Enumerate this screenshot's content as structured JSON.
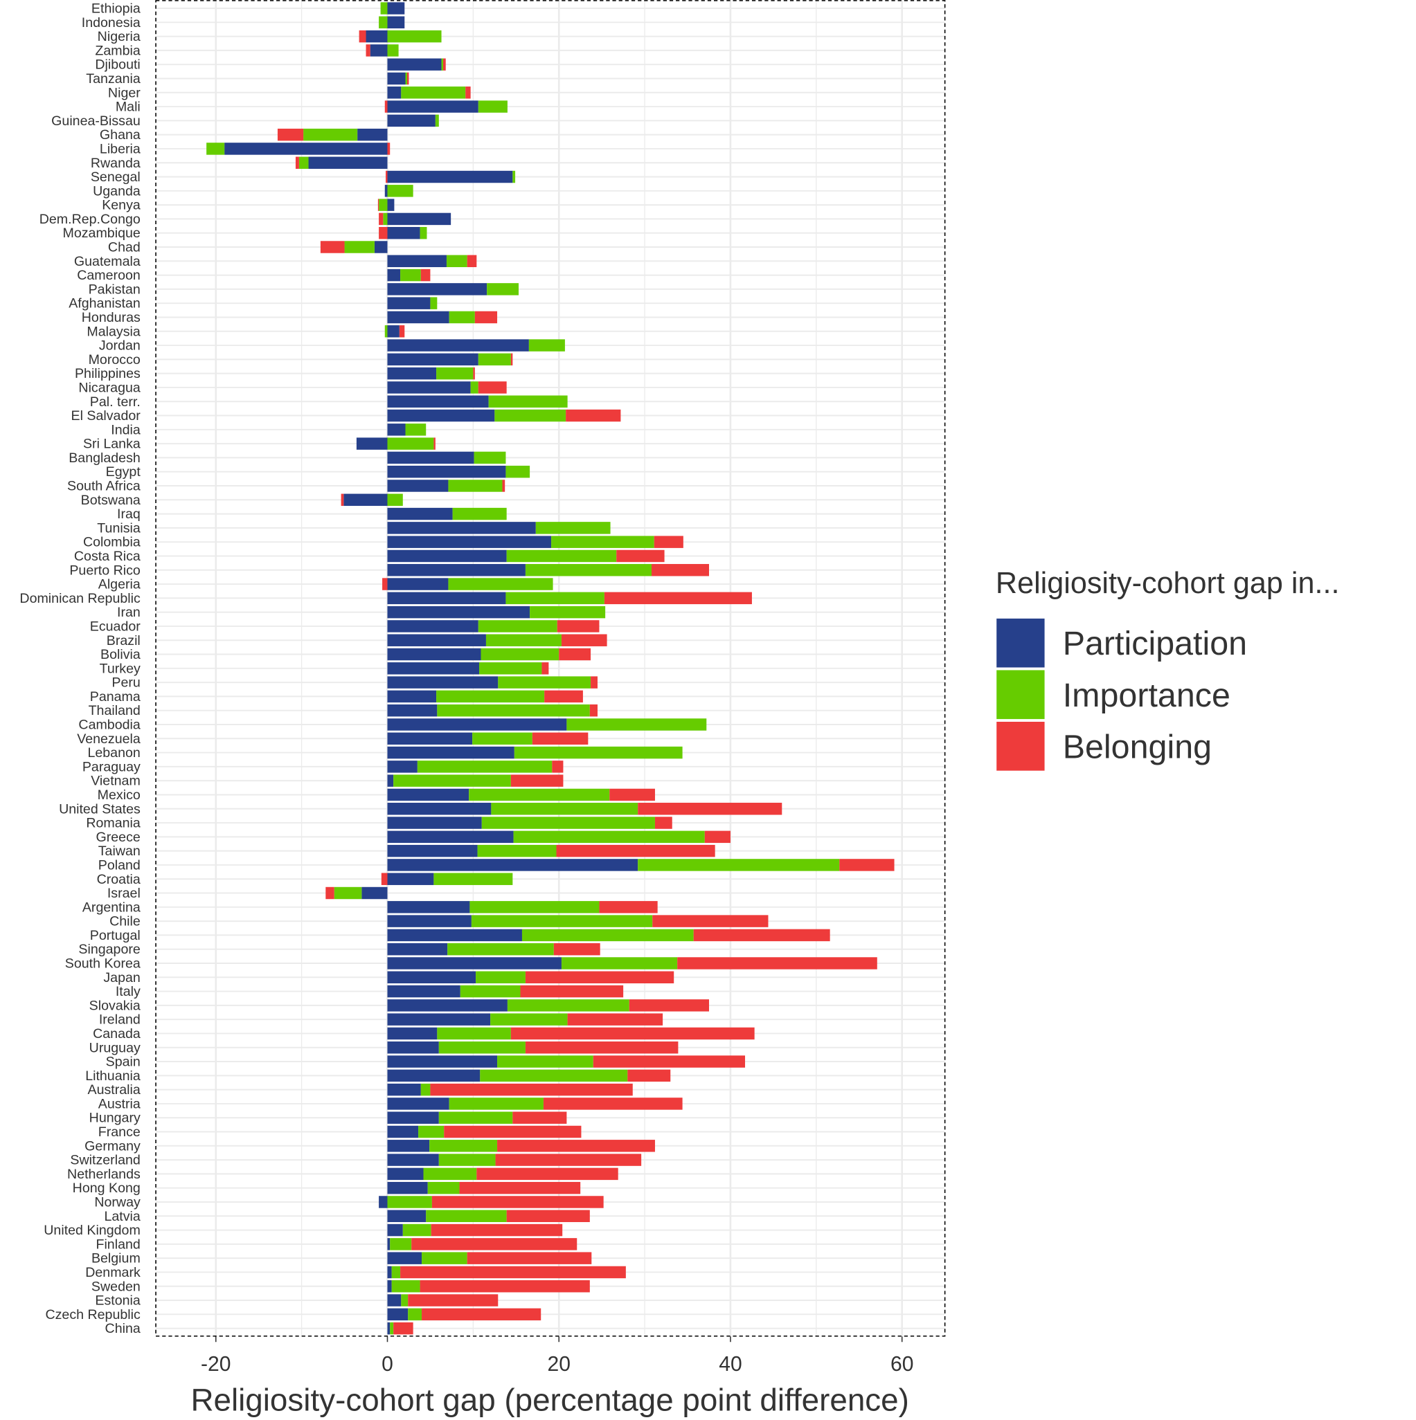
{
  "chart_data": {
    "type": "bar",
    "orientation": "horizontal",
    "stacked": true,
    "xlabel": "Religiosity-cohort gap (percentage point difference)",
    "ylabel": "",
    "xlim": [
      -27,
      65
    ],
    "xticks": [
      -20,
      0,
      20,
      40,
      60
    ],
    "grid": true,
    "legend": {
      "title": "Religiosity-cohort gap in...",
      "placement": "right",
      "entries": [
        "Participation",
        "Importance",
        "Belonging"
      ]
    },
    "colors": {
      "Participation": "#26408B",
      "Importance": "#66CC00",
      "Belonging": "#EE3B3B"
    },
    "categories": [
      "Ethiopia",
      "Indonesia",
      "Nigeria",
      "Zambia",
      "Djibouti",
      "Tanzania",
      "Niger",
      "Mali",
      "Guinea-Bissau",
      "Ghana",
      "Liberia",
      "Rwanda",
      "Senegal",
      "Uganda",
      "Kenya",
      "Dem.Rep.Congo",
      "Mozambique",
      "Chad",
      "Guatemala",
      "Cameroon",
      "Pakistan",
      "Afghanistan",
      "Honduras",
      "Malaysia",
      "Jordan",
      "Morocco",
      "Philippines",
      "Nicaragua",
      "Pal. terr.",
      "El Salvador",
      "India",
      "Sri Lanka",
      "Bangladesh",
      "Egypt",
      "South Africa",
      "Botswana",
      "Iraq",
      "Tunisia",
      "Colombia",
      "Costa Rica",
      "Puerto Rico",
      "Algeria",
      "Dominican Republic",
      "Iran",
      "Ecuador",
      "Brazil",
      "Bolivia",
      "Turkey",
      "Peru",
      "Panama",
      "Thailand",
      "Cambodia",
      "Venezuela",
      "Lebanon",
      "Paraguay",
      "Vietnam",
      "Mexico",
      "United States",
      "Romania",
      "Greece",
      "Taiwan",
      "Poland",
      "Croatia",
      "Israel",
      "Argentina",
      "Chile",
      "Portugal",
      "Singapore",
      "South Korea",
      "Japan",
      "Italy",
      "Slovakia",
      "Ireland",
      "Canada",
      "Uruguay",
      "Spain",
      "Lithuania",
      "Australia",
      "Austria",
      "Hungary",
      "France",
      "Germany",
      "Switzerland",
      "Netherlands",
      "Hong Kong",
      "Norway",
      "Latvia",
      "United Kingdom",
      "Finland",
      "Belgium",
      "Denmark",
      "Sweden",
      "Estonia",
      "Czech Republic",
      "China"
    ],
    "series": [
      {
        "name": "Participation",
        "values": [
          2.0,
          2.0,
          -2.5,
          -2.0,
          6.3,
          2.1,
          1.6,
          10.6,
          5.6,
          -3.5,
          -19.0,
          -9.2,
          14.6,
          -0.3,
          0.8,
          7.4,
          3.8,
          -1.5,
          6.9,
          1.5,
          11.6,
          5.0,
          7.2,
          1.4,
          16.5,
          10.6,
          5.7,
          9.7,
          11.8,
          12.5,
          2.1,
          -3.6,
          10.1,
          13.8,
          7.1,
          -5.1,
          7.6,
          17.3,
          19.1,
          13.9,
          16.1,
          7.1,
          13.8,
          16.6,
          10.6,
          11.5,
          10.9,
          10.7,
          12.9,
          5.7,
          5.8,
          20.9,
          9.9,
          14.8,
          3.5,
          0.7,
          9.5,
          12.1,
          11.0,
          14.7,
          10.5,
          29.2,
          5.4,
          -3.0,
          9.6,
          9.8,
          15.7,
          7.0,
          20.3,
          10.3,
          8.5,
          14.0,
          12.0,
          5.8,
          6.0,
          12.8,
          10.8,
          3.9,
          7.2,
          6.0,
          3.6,
          4.9,
          6.0,
          4.2,
          4.7,
          -1.0,
          4.5,
          1.8,
          0.3,
          4.0,
          0.5,
          0.5,
          1.6,
          2.4,
          0.3
        ]
      },
      {
        "name": "Importance",
        "values": [
          -0.8,
          -1.0,
          6.3,
          1.3,
          0.2,
          0.2,
          7.5,
          3.4,
          0.4,
          -6.3,
          -2.1,
          -1.1,
          0.3,
          3.0,
          -1.0,
          -0.5,
          0.8,
          -3.5,
          2.4,
          2.4,
          3.7,
          0.8,
          3.0,
          -0.3,
          4.2,
          3.8,
          4.3,
          0.9,
          9.2,
          8.3,
          2.4,
          5.4,
          3.7,
          2.8,
          6.3,
          1.8,
          6.3,
          8.7,
          12.0,
          12.8,
          14.7,
          12.2,
          11.5,
          8.8,
          9.2,
          8.8,
          9.1,
          7.3,
          10.8,
          12.6,
          17.8,
          16.3,
          7.0,
          19.6,
          15.7,
          13.7,
          16.4,
          17.1,
          20.2,
          22.3,
          9.2,
          23.5,
          9.2,
          -3.2,
          15.1,
          21.1,
          20.0,
          12.4,
          13.5,
          5.8,
          7.0,
          14.2,
          9.0,
          8.6,
          10.1,
          11.2,
          17.2,
          1.1,
          11.0,
          8.6,
          3.0,
          7.9,
          6.6,
          6.2,
          3.7,
          5.2,
          9.4,
          3.3,
          2.5,
          5.3,
          1.0,
          3.3,
          0.8,
          1.6,
          0.4
        ]
      },
      {
        "name": "Belonging",
        "values": [
          0,
          0,
          -0.8,
          -0.5,
          0.3,
          0.2,
          0.6,
          -0.3,
          0,
          -3.0,
          0.3,
          -0.4,
          -0.2,
          0,
          -0.1,
          -0.5,
          -1.0,
          -2.8,
          1.1,
          1.1,
          0,
          0,
          2.6,
          0.6,
          0,
          0.2,
          0.2,
          3.3,
          0,
          6.4,
          0,
          0.2,
          0,
          0,
          0.3,
          -0.3,
          0,
          0,
          3.4,
          5.6,
          6.7,
          -0.6,
          17.2,
          0,
          4.9,
          5.3,
          3.7,
          0.8,
          0.8,
          4.5,
          0.9,
          0,
          6.5,
          0,
          1.3,
          6.1,
          5.3,
          16.8,
          2.0,
          3.0,
          18.5,
          6.4,
          -0.7,
          -1.0,
          6.8,
          13.5,
          15.9,
          5.4,
          23.3,
          17.3,
          12.0,
          9.3,
          11.1,
          28.4,
          17.8,
          17.7,
          5.0,
          23.6,
          16.2,
          6.3,
          16.0,
          18.4,
          17.0,
          16.5,
          14.1,
          20.0,
          9.7,
          15.3,
          19.3,
          14.5,
          26.3,
          19.8,
          10.5,
          13.9,
          2.3
        ]
      }
    ]
  }
}
